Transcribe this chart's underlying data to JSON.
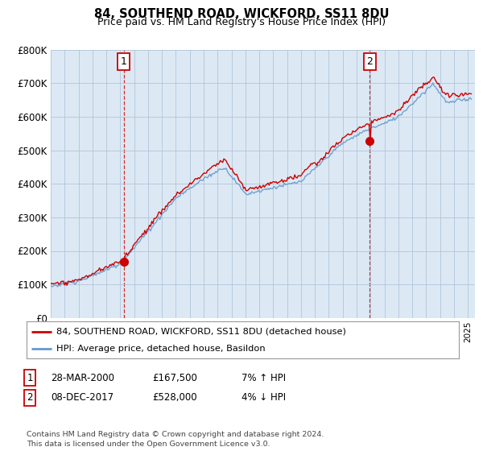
{
  "title": "84, SOUTHEND ROAD, WICKFORD, SS11 8DU",
  "subtitle": "Price paid vs. HM Land Registry's House Price Index (HPI)",
  "ylabel_ticks": [
    "£0",
    "£100K",
    "£200K",
    "£300K",
    "£400K",
    "£500K",
    "£600K",
    "£700K",
    "£800K"
  ],
  "ylim": [
    0,
    800000
  ],
  "xlim_start": 1995.0,
  "xlim_end": 2025.5,
  "sale1_x": 2000.24,
  "sale1_y": 167500,
  "sale1_label": "1",
  "sale2_x": 2017.94,
  "sale2_y": 528000,
  "sale2_label": "2",
  "annotation1_date": "28-MAR-2000",
  "annotation1_price": "£167,500",
  "annotation1_hpi": "7% ↑ HPI",
  "annotation2_date": "08-DEC-2017",
  "annotation2_price": "£528,000",
  "annotation2_hpi": "4% ↓ HPI",
  "legend_line1": "84, SOUTHEND ROAD, WICKFORD, SS11 8DU (detached house)",
  "legend_line2": "HPI: Average price, detached house, Basildon",
  "footer": "Contains HM Land Registry data © Crown copyright and database right 2024.\nThis data is licensed under the Open Government Licence v3.0.",
  "line_color_price": "#cc0000",
  "line_color_hpi": "#6699cc",
  "chart_bg_color": "#dce9f5",
  "background_color": "#ffffff",
  "grid_color": "#b0c4d8"
}
